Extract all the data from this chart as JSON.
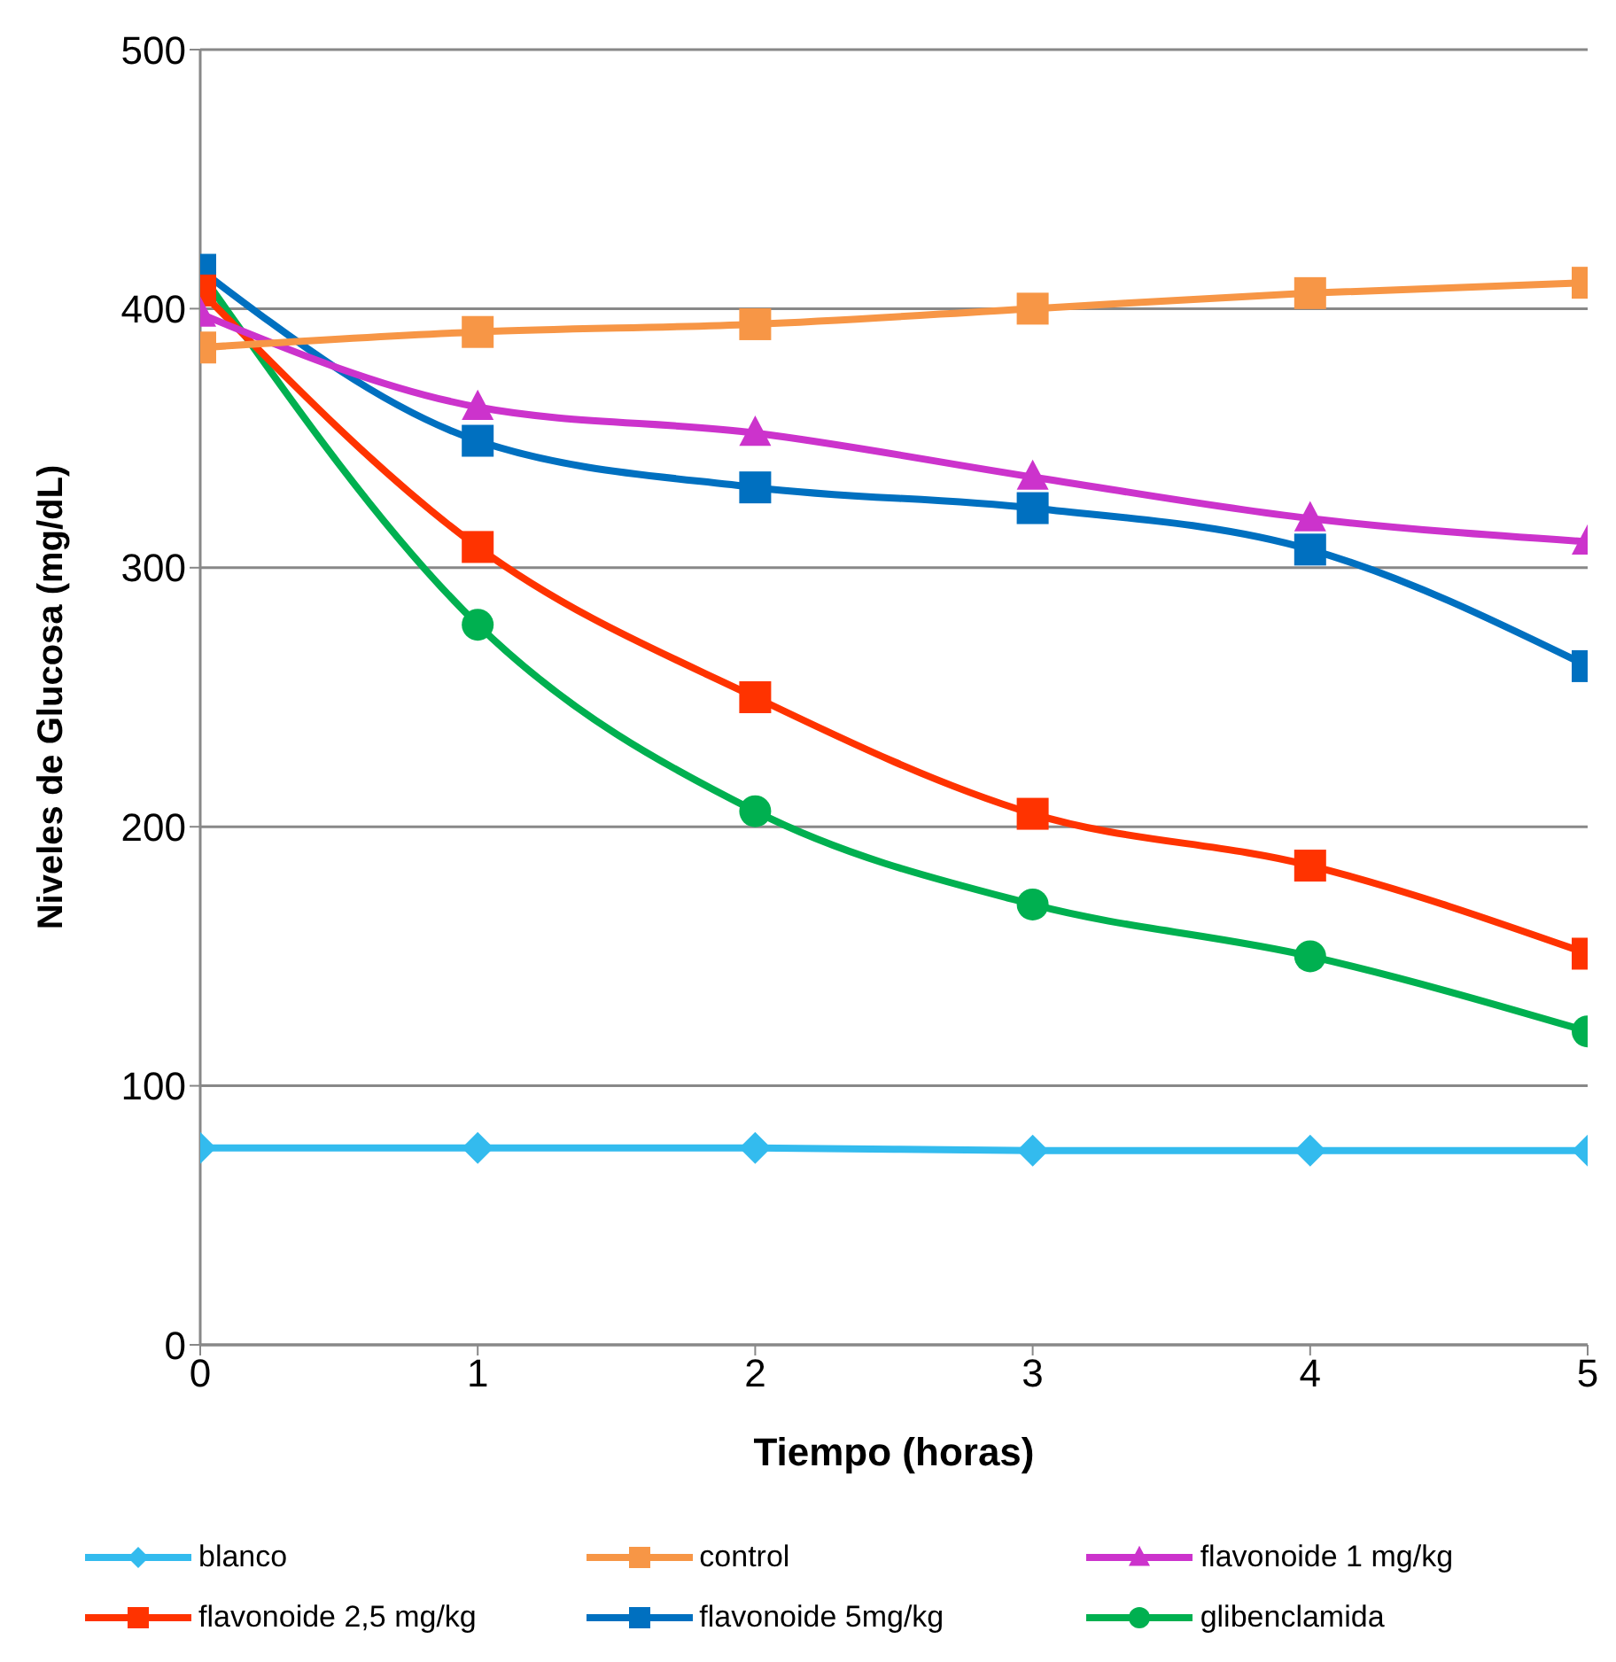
{
  "chart_data": {
    "type": "line",
    "xlabel": "Tiempo (horas)",
    "ylabel": "Niveles de Glucosa (mg/dL)",
    "x": [
      0,
      1,
      2,
      3,
      4,
      5
    ],
    "xlim": [
      0,
      5
    ],
    "xticks": [
      0,
      1,
      2,
      3,
      4,
      5
    ],
    "ylim": [
      0,
      500
    ],
    "yticks": [
      0,
      100,
      200,
      300,
      400,
      500
    ],
    "grid": "y",
    "legend": "bottom",
    "line_style": "solid",
    "series": [
      {
        "name": "blanco",
        "color": "#33bbee",
        "marker": "diamond",
        "values": [
          76,
          76,
          76,
          75,
          75,
          75
        ]
      },
      {
        "name": "control",
        "color": "#f79646",
        "marker": "square",
        "values": [
          385,
          391,
          394,
          400,
          406,
          410
        ]
      },
      {
        "name": "flavonoide 1 mg/kg",
        "color": "#cc33cc",
        "marker": "triangle",
        "values": [
          398,
          362,
          352,
          335,
          319,
          310
        ]
      },
      {
        "name": "flavonoide 2,5 mg/kg",
        "color": "#ff3300",
        "marker": "square",
        "values": [
          407,
          308,
          250,
          205,
          185,
          151
        ]
      },
      {
        "name": "flavonoide 5mg/kg",
        "color": "#0070c0",
        "marker": "square",
        "values": [
          415,
          349,
          331,
          323,
          307,
          262
        ]
      },
      {
        "name": "glibenclamida",
        "color": "#00b050",
        "marker": "circle",
        "values": [
          414,
          278,
          206,
          170,
          150,
          121
        ]
      }
    ]
  }
}
